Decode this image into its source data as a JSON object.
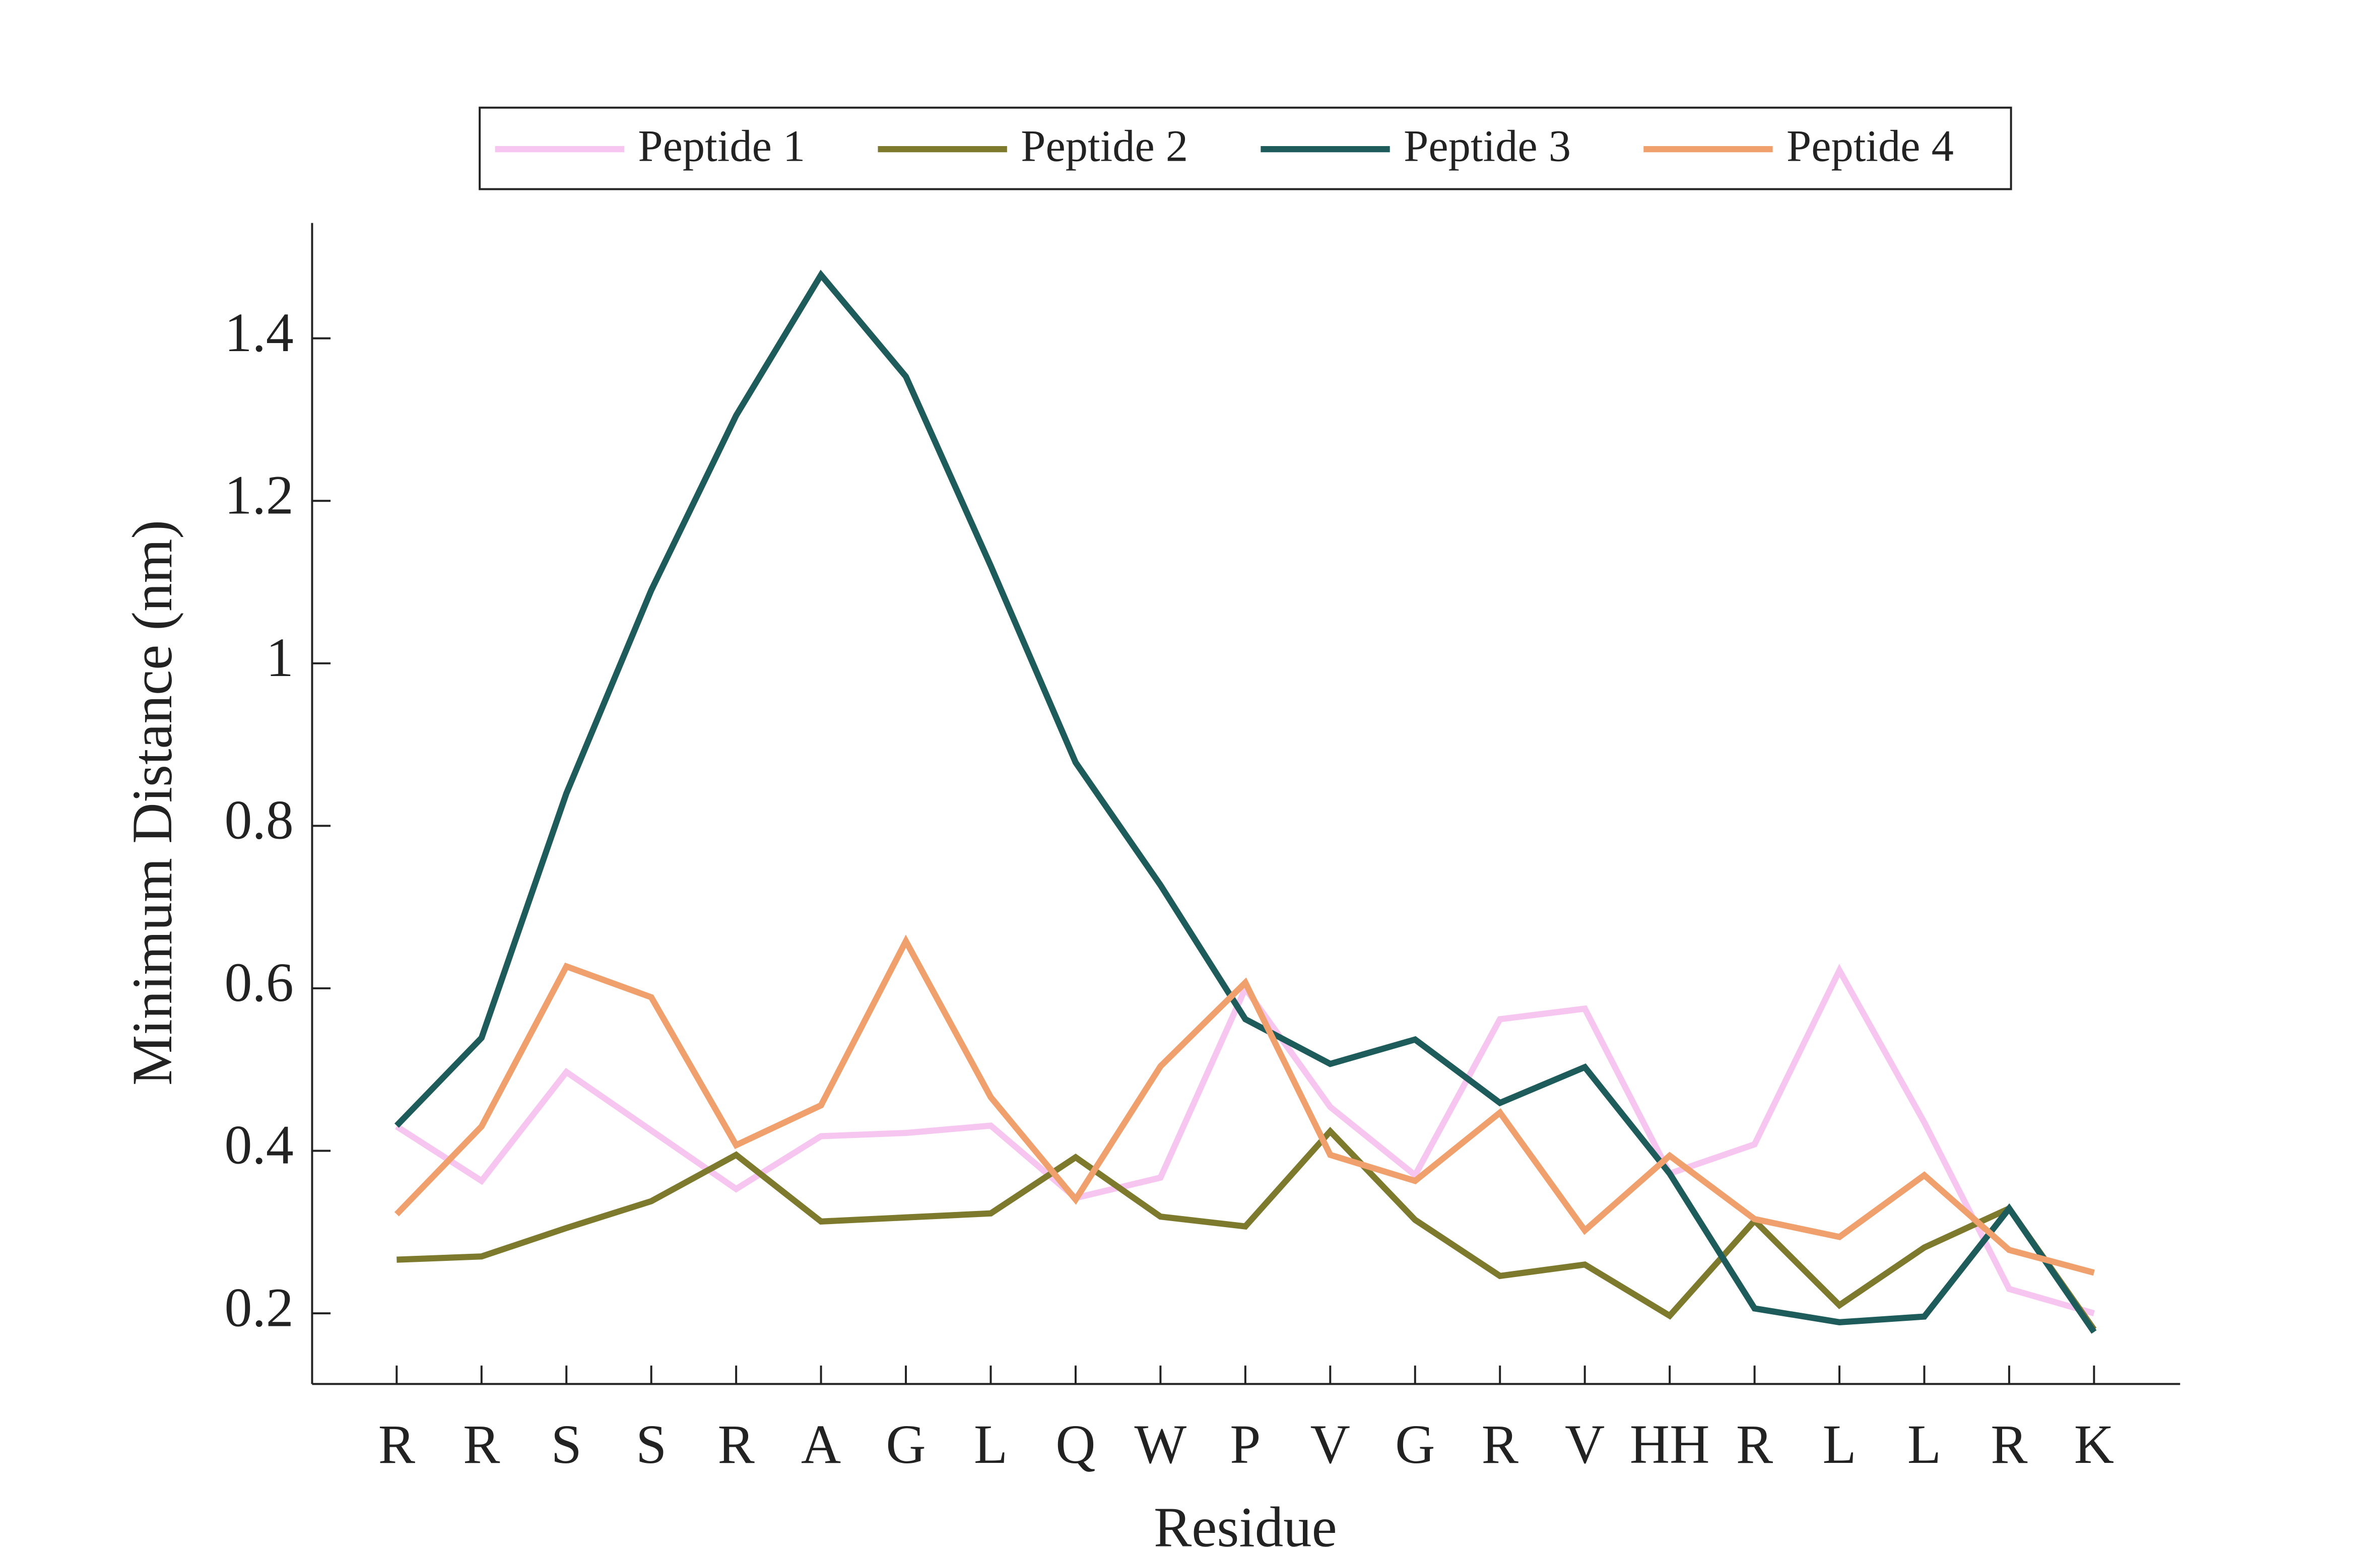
{
  "chart_data": {
    "type": "line",
    "x_label": "Residue",
    "y_label": "Minimum Distance (nm)",
    "categories": [
      "R",
      "R",
      "S",
      "S",
      "R",
      "A",
      "G",
      "L",
      "Q",
      "W",
      "P",
      "V",
      "G",
      "R",
      "V",
      "HH",
      "R",
      "L",
      "L",
      "R",
      "K"
    ],
    "series": [
      {
        "name": "Peptide 1",
        "color": "#f7c6f0",
        "values": [
          0.43,
          0.363,
          0.497,
          0.425,
          0.353,
          0.418,
          0.422,
          0.431,
          0.342,
          0.367,
          0.6,
          0.454,
          0.37,
          0.562,
          0.575,
          0.372,
          0.408,
          0.622,
          0.435,
          0.23,
          0.2
        ]
      },
      {
        "name": "Peptide 2",
        "color": "#7d7a2e",
        "values": [
          0.266,
          0.27,
          0.305,
          0.338,
          0.395,
          0.313,
          0.318,
          0.323,
          0.392,
          0.319,
          0.307,
          0.424,
          0.315,
          0.246,
          0.26,
          0.197,
          0.314,
          0.21,
          0.281,
          0.329,
          0.18
        ]
      },
      {
        "name": "Peptide 3",
        "color": "#1e5b5b",
        "values": [
          0.431,
          0.539,
          0.84,
          1.09,
          1.305,
          1.478,
          1.353,
          1.12,
          0.878,
          0.727,
          0.562,
          0.507,
          0.537,
          0.459,
          0.503,
          0.372,
          0.206,
          0.189,
          0.196,
          0.329,
          0.177
        ]
      },
      {
        "name": "Peptide 4",
        "color": "#f0a06c",
        "values": [
          0.322,
          0.43,
          0.627,
          0.589,
          0.407,
          0.456,
          0.658,
          0.466,
          0.34,
          0.504,
          0.607,
          0.395,
          0.363,
          0.447,
          0.302,
          0.394,
          0.316,
          0.294,
          0.37,
          0.278,
          0.25
        ]
      }
    ],
    "ylim": [
      0.113,
      1.542
    ],
    "yticks": [
      0.2,
      0.4,
      0.6,
      0.8,
      1,
      1.2,
      1.4
    ],
    "legend": "top"
  }
}
